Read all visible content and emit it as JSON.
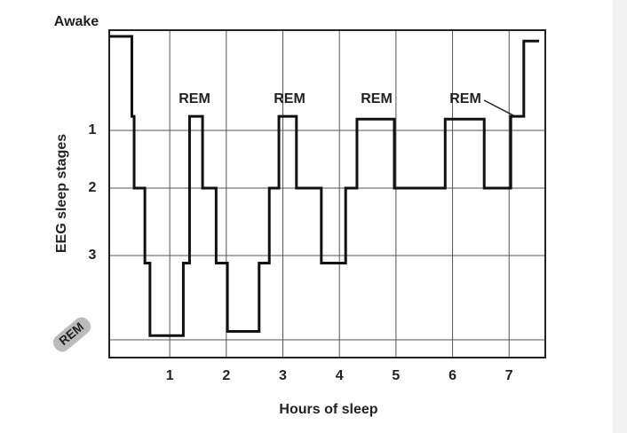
{
  "chart_data": {
    "type": "line",
    "drawstyle": "steps-post",
    "color": "#111111",
    "xlabel": "Hours of sleep",
    "ylabel": "EEG sleep stages",
    "x": [
      -0.07,
      0.33,
      0.37,
      0.56,
      0.65,
      1.24,
      1.35,
      1.58,
      1.82,
      2.02,
      2.58,
      2.76,
      2.93,
      3.24,
      3.68,
      4.11,
      4.31,
      4.97,
      5.87,
      6.56,
      7.03,
      7.26,
      7.53
    ],
    "values": [
      0,
      0.85,
      2,
      3.09,
      3.95,
      3.09,
      0.85,
      2,
      3.09,
      3.9,
      3.09,
      2,
      0.85,
      2,
      3.09,
      2,
      0.88,
      2,
      0.88,
      2,
      0.85,
      0.05,
      0.05
    ],
    "xlim": [
      -0.07,
      7.64
    ],
    "xticks": [
      1,
      2,
      3,
      4,
      5,
      6,
      7
    ],
    "ylim": [
      0,
      4.2
    ],
    "yticks": [
      {
        "value": 0,
        "label": "Awake"
      },
      1,
      2,
      3,
      {
        "value": 4,
        "label": "REM"
      }
    ],
    "grid": true,
    "annotations": [
      "REM",
      "REM",
      "REM",
      "REM"
    ]
  }
}
